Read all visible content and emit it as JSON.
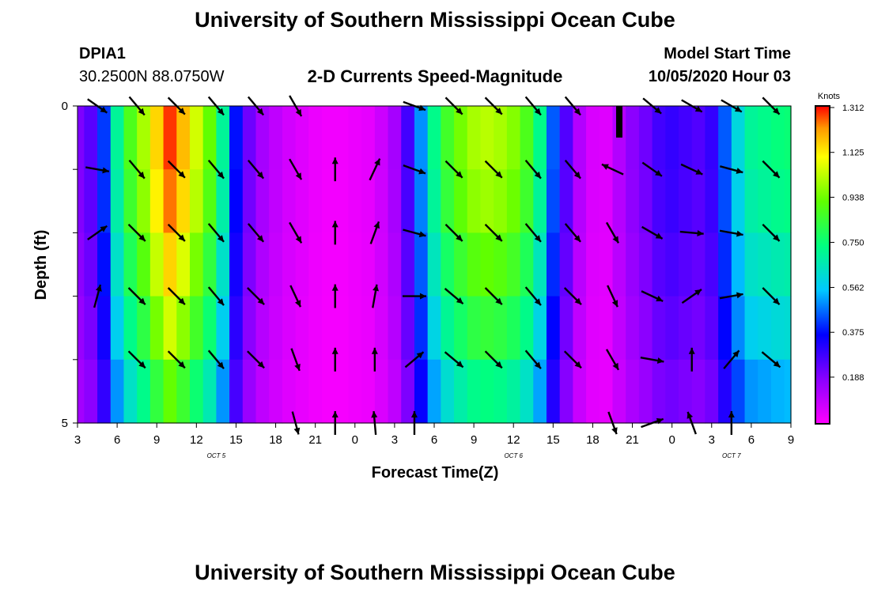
{
  "header": {
    "title": "University of Southern Mississippi Ocean Cube",
    "footer_title": "University of Southern Mississippi Ocean Cube",
    "station_id": "DPIA1",
    "station_coords": "30.2500N 88.0750W",
    "model_start_label": "Model Start Time",
    "model_start_value": "10/05/2020 Hour 03"
  },
  "chart_data": {
    "type": "heatmap",
    "title": "2-D Currents Speed-Magnitude",
    "xlabel": "Forecast Time(Z)",
    "ylabel": "Depth (ft)",
    "x_start_hour": 3,
    "x_end_hour": 57,
    "ylim": [
      0,
      5
    ],
    "x_ticks": [
      {
        "h": 3,
        "label": "3"
      },
      {
        "h": 6,
        "label": "6"
      },
      {
        "h": 9,
        "label": "9"
      },
      {
        "h": 12,
        "label": "12"
      },
      {
        "h": 15,
        "label": "15"
      },
      {
        "h": 18,
        "label": "18"
      },
      {
        "h": 21,
        "label": "21"
      },
      {
        "h": 24,
        "label": "0"
      },
      {
        "h": 27,
        "label": "3"
      },
      {
        "h": 30,
        "label": "6"
      },
      {
        "h": 33,
        "label": "9"
      },
      {
        "h": 36,
        "label": "12"
      },
      {
        "h": 39,
        "label": "15"
      },
      {
        "h": 42,
        "label": "18"
      },
      {
        "h": 45,
        "label": "21"
      },
      {
        "h": 48,
        "label": "0"
      },
      {
        "h": 51,
        "label": "3"
      },
      {
        "h": 54,
        "label": "6"
      },
      {
        "h": 57,
        "label": "9"
      }
    ],
    "date_labels": [
      {
        "h": 13.5,
        "label": "OCT 5"
      },
      {
        "h": 36,
        "label": "OCT 6"
      },
      {
        "h": 52.5,
        "label": "OCT 7"
      }
    ],
    "y_ticks": [
      {
        "v": 0,
        "label": "0"
      },
      {
        "v": 1,
        "label": ""
      },
      {
        "v": 2,
        "label": ""
      },
      {
        "v": 3,
        "label": ""
      },
      {
        "v": 4,
        "label": ""
      },
      {
        "v": 5,
        "label": "5"
      }
    ],
    "colorbar": {
      "units": "Knots",
      "min": 0,
      "max": 1.312,
      "tick_labels": [
        "1.312",
        "1.125",
        "0.938",
        "0.750",
        "0.562",
        "0.375",
        "0.188"
      ],
      "tick_values": [
        1.312,
        1.125,
        0.938,
        0.75,
        0.562,
        0.375,
        0.188
      ]
    },
    "speed_profile": {
      "hours": [
        3,
        4,
        5,
        6,
        7,
        8,
        9,
        10,
        11,
        12,
        13,
        14,
        15,
        16,
        17,
        18,
        19,
        20,
        21,
        22,
        23,
        24,
        25,
        26,
        27,
        28,
        29,
        30,
        31,
        32,
        33,
        34,
        35,
        36,
        37,
        38,
        39,
        40,
        41,
        42,
        43,
        44,
        45,
        46,
        47,
        48,
        49,
        50,
        51,
        52,
        53,
        54,
        55,
        56,
        57
      ],
      "values": [
        0.2,
        0.25,
        0.42,
        0.7,
        0.88,
        1.0,
        1.15,
        1.28,
        1.18,
        1.05,
        0.92,
        0.7,
        0.38,
        0.22,
        0.14,
        0.1,
        0.07,
        0.05,
        0.03,
        0.02,
        0.02,
        0.03,
        0.04,
        0.08,
        0.14,
        0.28,
        0.5,
        0.72,
        0.86,
        0.94,
        1.0,
        1.02,
        1.0,
        0.96,
        0.88,
        0.72,
        0.45,
        0.26,
        0.12,
        0.06,
        0.05,
        0.12,
        0.18,
        0.22,
        0.28,
        0.3,
        0.28,
        0.26,
        0.3,
        0.45,
        0.6,
        0.7,
        0.72,
        0.74,
        0.75
      ],
      "depth_factors": [
        1.0,
        0.97,
        0.9,
        0.82,
        0.72
      ]
    },
    "vectors": [
      {
        "h": 4.5,
        "rows": [
          -35,
          -10,
          35,
          75,
          null,
          null
        ]
      },
      {
        "h": 7.5,
        "rows": [
          -50,
          -50,
          -45,
          -45,
          -45,
          null
        ]
      },
      {
        "h": 10.5,
        "rows": [
          -45,
          -45,
          -45,
          -45,
          -45,
          null
        ]
      },
      {
        "h": 13.5,
        "rows": [
          -50,
          -50,
          -50,
          -50,
          -50,
          null
        ]
      },
      {
        "h": 16.5,
        "rows": [
          -50,
          -50,
          -50,
          -45,
          -45,
          null
        ]
      },
      {
        "h": 19.5,
        "rows": [
          -60,
          -60,
          -60,
          -65,
          -70,
          -75
        ]
      },
      {
        "h": 22.5,
        "rows": [
          null,
          90,
          90,
          90,
          90,
          90
        ]
      },
      {
        "h": 25.5,
        "rows": [
          null,
          65,
          70,
          80,
          90,
          95
        ]
      },
      {
        "h": 28.5,
        "rows": [
          -20,
          -20,
          -15,
          0,
          40,
          90
        ]
      },
      {
        "h": 31.5,
        "rows": [
          -45,
          -45,
          -45,
          -40,
          -40,
          null
        ]
      },
      {
        "h": 34.5,
        "rows": [
          -45,
          -45,
          -45,
          -45,
          -45,
          null
        ]
      },
      {
        "h": 37.5,
        "rows": [
          -50,
          -50,
          -50,
          -50,
          -50,
          null
        ]
      },
      {
        "h": 40.5,
        "rows": [
          -50,
          -50,
          -50,
          -45,
          -45,
          null
        ]
      },
      {
        "h": 43.5,
        "rows": [
          null,
          155,
          -60,
          -65,
          -60,
          -70
        ]
      },
      {
        "h": 46.5,
        "rows": [
          -40,
          -35,
          -30,
          -25,
          -10,
          20
        ]
      },
      {
        "h": 49.5,
        "rows": [
          -30,
          -25,
          -5,
          35,
          90,
          110
        ]
      },
      {
        "h": 52.5,
        "rows": [
          -30,
          -15,
          -10,
          10,
          50,
          90
        ]
      },
      {
        "h": 55.5,
        "rows": [
          -45,
          -45,
          -45,
          -45,
          -40,
          null
        ]
      }
    ]
  }
}
